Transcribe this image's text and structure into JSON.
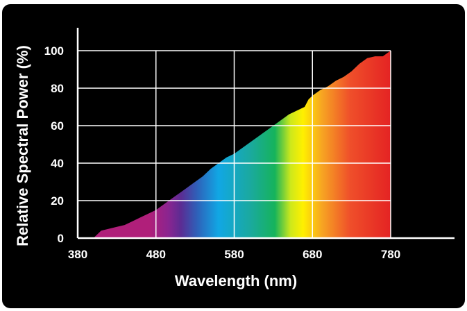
{
  "chart_data": {
    "type": "area",
    "title": "",
    "xlabel": "Wavelength (nm)",
    "ylabel": "Relative Spectral Power (%)",
    "xlim": [
      380,
      780
    ],
    "ylim": [
      0,
      100
    ],
    "x_ticks": [
      380,
      480,
      580,
      680,
      780
    ],
    "y_ticks": [
      0,
      20,
      40,
      60,
      80,
      100
    ],
    "grid": true,
    "legend": "none",
    "series": [
      {
        "x": [
          400,
          405,
          410,
          420,
          430,
          440,
          450,
          460,
          470,
          480,
          490,
          500,
          510,
          520,
          530,
          540,
          550,
          560,
          570,
          580,
          590,
          600,
          610,
          620,
          630,
          640,
          650,
          660,
          670,
          675,
          680,
          690,
          700,
          710,
          720,
          730,
          740,
          750,
          760,
          770,
          780
        ],
        "y": [
          0,
          2,
          4,
          5,
          6,
          7,
          9,
          11,
          13,
          15,
          18,
          21,
          24,
          27,
          30,
          33,
          37,
          40,
          43,
          45,
          48,
          51,
          54,
          57,
          60,
          63,
          66,
          68,
          70,
          74,
          76,
          79,
          81,
          84,
          86,
          89,
          93,
          96,
          97,
          97,
          100
        ],
        "color_stops": [
          "#b01f7a",
          "#b01f7a",
          "#8a2590",
          "#5b2c93",
          "#2f5fb8",
          "#11a7e4",
          "#1aa9a0",
          "#16b35b",
          "#cde81b",
          "#fff000",
          "#f7a522",
          "#ef4f2a",
          "#e42323"
        ]
      }
    ]
  }
}
